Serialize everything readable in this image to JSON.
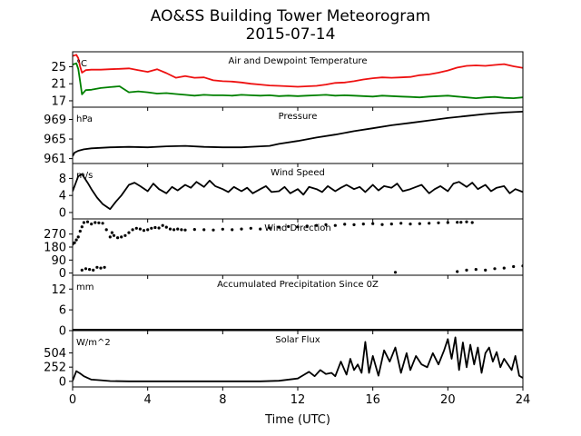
{
  "title": "AO&SS Building Tower Meteorogram",
  "subtitle": "2015-07-14",
  "chart_data": {
    "type": "line",
    "xlabel": "Time (UTC)",
    "xlim": [
      0,
      24
    ],
    "xticks": [
      0,
      4,
      8,
      12,
      16,
      20,
      24
    ],
    "panels": [
      {
        "id": "temp",
        "title": "Air and Dewpoint Temperature",
        "unit": "°C",
        "ylim": [
          15.5,
          28.5
        ],
        "yticks": [
          17,
          21,
          25
        ],
        "series": [
          {
            "color": "#ee1111",
            "x": [
              0,
              0.2,
              0.3,
              0.4,
              0.5,
              0.7,
              1.0,
              1.5,
              2.0,
              2.5,
              3.0,
              3.5,
              4.0,
              4.5,
              5.0,
              5.5,
              6.0,
              6.5,
              7.0,
              7.5,
              8.0,
              8.5,
              9.0,
              9.5,
              10.0,
              10.5,
              11.0,
              11.5,
              12.0,
              12.5,
              13.0,
              13.5,
              14.0,
              14.5,
              15.0,
              15.5,
              16.0,
              16.5,
              17.0,
              17.5,
              18.0,
              18.5,
              19.0,
              19.5,
              20.0,
              20.5,
              21.0,
              21.5,
              22.0,
              22.5,
              23.0,
              23.5,
              24.0
            ],
            "y": [
              27.5,
              27.8,
              27.0,
              25.0,
              23.6,
              24.2,
              24.3,
              24.3,
              24.4,
              24.5,
              24.6,
              24.2,
              23.8,
              24.4,
              23.5,
              22.4,
              22.8,
              22.4,
              22.5,
              21.8,
              21.6,
              21.5,
              21.3,
              21.0,
              20.8,
              20.6,
              20.5,
              20.4,
              20.3,
              20.4,
              20.5,
              20.8,
              21.2,
              21.3,
              21.6,
              22.0,
              22.3,
              22.5,
              22.4,
              22.5,
              22.6,
              23.0,
              23.2,
              23.6,
              24.1,
              24.8,
              25.2,
              25.3,
              25.2,
              25.4,
              25.6,
              25.1,
              24.7
            ]
          },
          {
            "color": "#008000",
            "x": [
              0,
              0.2,
              0.3,
              0.4,
              0.5,
              0.7,
              1.0,
              1.5,
              2.0,
              2.5,
              3.0,
              3.5,
              4.0,
              4.5,
              5.0,
              5.5,
              6.0,
              6.5,
              7.0,
              7.5,
              8.0,
              8.5,
              9.0,
              9.5,
              10.0,
              10.5,
              11.0,
              11.5,
              12.0,
              12.5,
              13.0,
              13.5,
              14.0,
              14.5,
              15.0,
              15.5,
              16.0,
              16.5,
              17.0,
              17.5,
              18.0,
              18.5,
              19.0,
              19.5,
              20.0,
              20.5,
              21.0,
              21.5,
              22.0,
              22.5,
              23.0,
              23.5,
              24.0
            ],
            "y": [
              25.5,
              25.8,
              24.5,
              21.5,
              18.5,
              19.5,
              19.6,
              20.0,
              20.2,
              20.4,
              19.0,
              19.2,
              19.0,
              18.7,
              18.8,
              18.6,
              18.4,
              18.2,
              18.4,
              18.3,
              18.3,
              18.2,
              18.4,
              18.3,
              18.2,
              18.3,
              18.1,
              18.2,
              18.1,
              18.2,
              18.3,
              18.4,
              18.2,
              18.3,
              18.2,
              18.1,
              18.0,
              18.2,
              18.1,
              18.0,
              17.9,
              17.8,
              18.0,
              18.1,
              18.2,
              18.0,
              17.8,
              17.6,
              17.8,
              17.9,
              17.7,
              17.6,
              17.8
            ]
          }
        ]
      },
      {
        "id": "pressure",
        "title": "Pressure",
        "unit": "hPa",
        "ylim": [
          960.0,
          971.5
        ],
        "yticks": [
          961,
          965,
          969
        ],
        "series": [
          {
            "color": "#000000",
            "x": [
              0,
              0.1,
              0.3,
              0.6,
              1.0,
              2.0,
              3.0,
              4.0,
              5.0,
              6.0,
              7.0,
              8.0,
              9.0,
              10.0,
              10.5,
              11.0,
              12.0,
              13.0,
              14.0,
              15.0,
              16.0,
              17.0,
              18.0,
              19.0,
              20.0,
              21.0,
              22.0,
              23.0,
              24.0
            ],
            "y": [
              961.5,
              962.2,
              962.6,
              962.9,
              963.1,
              963.3,
              963.4,
              963.3,
              963.5,
              963.6,
              963.4,
              963.3,
              963.3,
              963.5,
              963.6,
              964.0,
              964.6,
              965.3,
              965.9,
              966.6,
              967.2,
              967.8,
              968.3,
              968.8,
              969.3,
              969.7,
              970.1,
              970.4,
              970.6
            ]
          }
        ]
      },
      {
        "id": "wind-speed",
        "title": "Wind Speed",
        "unit": "m/s",
        "ylim": [
          -1.5,
          11.5
        ],
        "yticks": [
          0,
          4,
          8
        ],
        "series": [
          {
            "color": "#000000",
            "x": [
              0,
              0.3,
              0.5,
              0.8,
              1.0,
              1.3,
              1.6,
              2.0,
              2.3,
              2.6,
              3.0,
              3.3,
              3.6,
              4.0,
              4.3,
              4.6,
              5.0,
              5.3,
              5.6,
              6.0,
              6.3,
              6.6,
              7.0,
              7.3,
              7.6,
              8.0,
              8.3,
              8.6,
              9.0,
              9.3,
              9.6,
              10.0,
              10.3,
              10.6,
              11.0,
              11.3,
              11.6,
              12.0,
              12.3,
              12.6,
              13.0,
              13.3,
              13.6,
              14.0,
              14.3,
              14.6,
              15.0,
              15.3,
              15.6,
              16.0,
              16.3,
              16.6,
              17.0,
              17.3,
              17.6,
              18.0,
              18.3,
              18.6,
              19.0,
              19.3,
              19.6,
              20.0,
              20.3,
              20.6,
              21.0,
              21.3,
              21.6,
              22.0,
              22.3,
              22.6,
              23.0,
              23.3,
              23.6,
              24.0
            ],
            "y": [
              5.0,
              8.5,
              9.0,
              7.0,
              5.5,
              3.5,
              2.0,
              0.8,
              2.5,
              4.0,
              6.5,
              7.0,
              6.2,
              5.0,
              6.8,
              5.5,
              4.5,
              6.0,
              5.2,
              6.5,
              5.8,
              7.2,
              6.0,
              7.5,
              6.2,
              5.5,
              4.8,
              6.0,
              5.0,
              5.8,
              4.5,
              5.5,
              6.2,
              4.8,
              5.0,
              6.0,
              4.5,
              5.5,
              4.2,
              6.0,
              5.5,
              4.8,
              6.2,
              5.0,
              5.8,
              6.5,
              5.5,
              6.0,
              4.8,
              6.5,
              5.2,
              6.2,
              5.8,
              6.8,
              5.0,
              5.5,
              6.0,
              6.5,
              4.5,
              5.5,
              6.2,
              5.0,
              6.8,
              7.2,
              6.0,
              7.0,
              5.5,
              6.5,
              5.0,
              5.8,
              6.2,
              4.5,
              5.5,
              4.8
            ]
          }
        ]
      },
      {
        "id": "wind-direction",
        "title": "Wind Direction",
        "unit": "",
        "ylim": [
          -15,
          375
        ],
        "yticks": [
          0,
          90,
          180,
          270
        ],
        "scatter": true,
        "series": [
          {
            "color": "#000000",
            "x": [
              0.0,
              0.1,
              0.2,
              0.3,
              0.4,
              0.5,
              0.6,
              0.8,
              1.0,
              1.2,
              1.4,
              1.6,
              1.8,
              2.0,
              2.1,
              2.2,
              2.4,
              2.6,
              2.8,
              3.0,
              3.2,
              3.4,
              3.6,
              3.8,
              4.0,
              4.2,
              4.4,
              4.6,
              4.8,
              5.0,
              5.2,
              5.4,
              5.6,
              5.8,
              6.0,
              6.5,
              7.0,
              7.5,
              8.0,
              8.5,
              9.0,
              9.5,
              10.0,
              10.5,
              11.0,
              11.5,
              12.0,
              12.5,
              13.0,
              13.5,
              14.0,
              14.5,
              15.0,
              15.5,
              16.0,
              16.5,
              17.0,
              17.5,
              18.0,
              18.5,
              19.0,
              19.5,
              20.0,
              20.5,
              20.7,
              21.0,
              21.3,
              0.5,
              0.7,
              0.9,
              1.1,
              1.3,
              1.5,
              1.7,
              17.2,
              20.5,
              21.0,
              21.5,
              22.0,
              22.5,
              23.0,
              23.5,
              24.0
            ],
            "y": [
              200,
              210,
              230,
              250,
              290,
              320,
              350,
              355,
              340,
              350,
              348,
              345,
              300,
              250,
              280,
              260,
              245,
              250,
              260,
              280,
              300,
              310,
              305,
              295,
              300,
              310,
              315,
              312,
              330,
              318,
              305,
              300,
              305,
              300,
              298,
              302,
              300,
              298,
              304,
              300,
              305,
              310,
              305,
              312,
              318,
              322,
              320,
              325,
              330,
              335,
              330,
              338,
              335,
              340,
              342,
              336,
              340,
              345,
              340,
              342,
              345,
              348,
              350,
              352,
              352,
              355,
              350,
              20,
              30,
              25,
              20,
              40,
              35,
              40,
              5,
              10,
              20,
              25,
              20,
              30,
              35,
              45,
              50
            ]
          }
        ]
      },
      {
        "id": "precip",
        "title": "Accumulated Precipitation Since 0Z",
        "unit": "mm",
        "ylim": [
          0,
          16
        ],
        "yticks": [
          0,
          6,
          12
        ],
        "series": [
          {
            "color": "#000000",
            "x": [
              0,
              24
            ],
            "y": [
              0.3,
              0.3
            ]
          }
        ]
      },
      {
        "id": "solar",
        "title": "Solar Flux",
        "unit": "W/m^2",
        "ylim": [
          -100,
          900
        ],
        "yticks": [
          0,
          252,
          504
        ],
        "series": [
          {
            "color": "#000000",
            "x": [
              0,
              0.2,
              0.4,
              0.6,
              0.8,
              1.0,
              1.5,
              2.0,
              3.0,
              4.0,
              6.0,
              8.0,
              10.0,
              11.0,
              12.0,
              12.3,
              12.6,
              12.9,
              13.2,
              13.5,
              13.8,
              14.0,
              14.3,
              14.6,
              14.8,
              15.0,
              15.2,
              15.4,
              15.6,
              15.8,
              16.0,
              16.3,
              16.6,
              16.9,
              17.2,
              17.5,
              17.8,
              18.0,
              18.3,
              18.6,
              18.9,
              19.2,
              19.5,
              19.8,
              20.0,
              20.2,
              20.4,
              20.6,
              20.8,
              21.0,
              21.2,
              21.4,
              21.6,
              21.8,
              22.0,
              22.2,
              22.4,
              22.6,
              22.8,
              23.0,
              23.2,
              23.4,
              23.6,
              23.8,
              24.0
            ],
            "y": [
              10,
              180,
              140,
              90,
              60,
              30,
              20,
              5,
              0,
              0,
              0,
              0,
              0,
              10,
              50,
              110,
              170,
              90,
              200,
              130,
              150,
              90,
              350,
              120,
              400,
              200,
              300,
              150,
              700,
              150,
              450,
              100,
              550,
              350,
              600,
              150,
              500,
              200,
              450,
              300,
              250,
              500,
              300,
              550,
              750,
              400,
              780,
              200,
              690,
              250,
              650,
              300,
              600,
              150,
              500,
              600,
              350,
              520,
              250,
              400,
              300,
              200,
              450,
              100,
              60
            ]
          }
        ]
      }
    ]
  }
}
